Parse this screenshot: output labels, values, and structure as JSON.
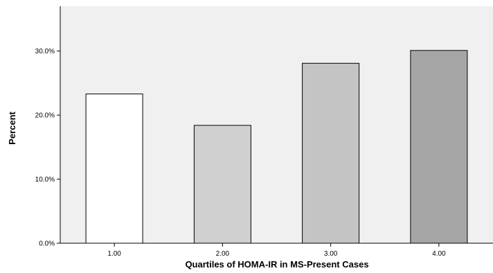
{
  "chart_data": {
    "type": "bar",
    "categories": [
      "1.00",
      "2.00",
      "3.00",
      "4.00"
    ],
    "values": [
      23.3,
      18.4,
      28.1,
      30.1
    ],
    "xlabel": "Quartiles of HOMA-IR in MS-Present Cases",
    "ylabel": "Percent",
    "ylim": [
      0,
      37
    ],
    "yticks": [
      0,
      10,
      20,
      30
    ],
    "ytick_labels": [
      "0.0%",
      "10.0%",
      "20.0%",
      "30.0%"
    ],
    "grid": false,
    "legend": "none",
    "colors": {
      "plot_background": "#f0f0f0",
      "axis": "#000000",
      "bars": [
        "#ffffff",
        "#d0d0d0",
        "#c4c4c4",
        "#a6a6a6"
      ]
    }
  }
}
